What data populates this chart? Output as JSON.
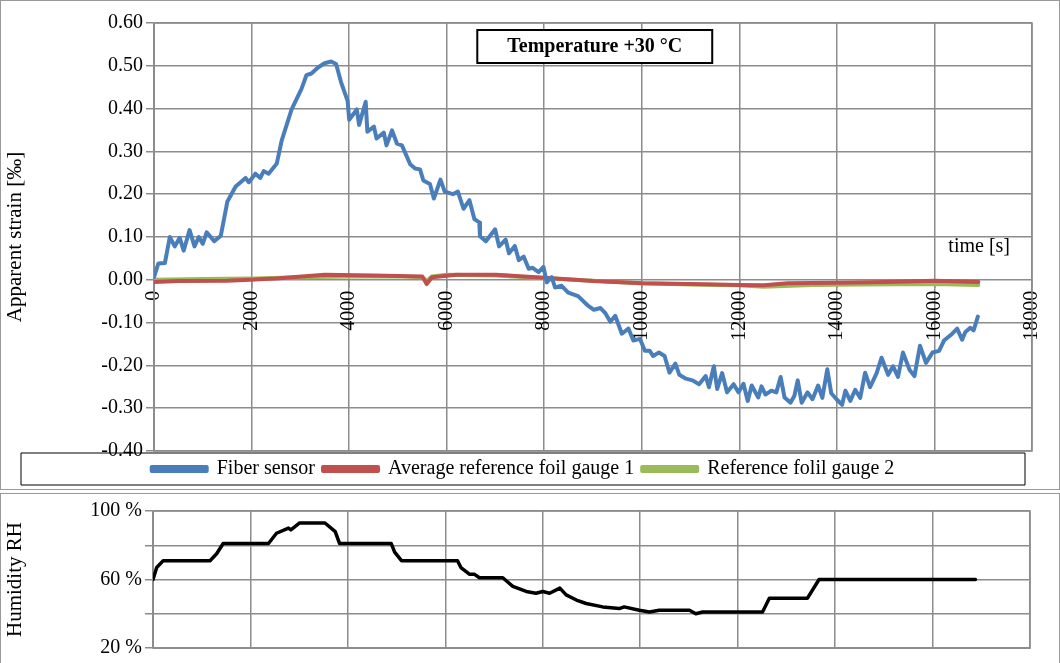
{
  "chart_data": [
    {
      "type": "line",
      "title": "Temperature +30 °C",
      "xlabel": "time [s]",
      "ylabel": "Apparent strain [‰]",
      "series": [
        {
          "name": "Fiber sensor",
          "color": "#4a7ebb",
          "x": [
            0,
            88,
            223,
            324,
            425,
            527,
            608,
            729,
            830,
            918,
            999,
            1080,
            1235,
            1370,
            1505,
            1674,
            1877,
            1944,
            2079,
            2180,
            2248,
            2349,
            2518,
            2619,
            2821,
            3024,
            3125,
            3227,
            3362,
            3497,
            3632,
            3733,
            3834,
            3969,
            4002,
            4158,
            4205,
            4340,
            4374,
            4509,
            4563,
            4711,
            4766,
            4880,
            4982,
            5083,
            5252,
            5353,
            5454,
            5522,
            5657,
            5738,
            5873,
            5960,
            6129,
            6230,
            6345,
            6467,
            6568,
            6669,
            6683,
            6804,
            6993,
            7074,
            7209,
            7277,
            7398,
            7479,
            7580,
            7682,
            7763,
            7884,
            7985,
            8053,
            8154,
            8222,
            8357,
            8492,
            8694,
            8883,
            9018,
            9153,
            9254,
            9355,
            9456,
            9591,
            9726,
            9827,
            9962,
            10063,
            10164,
            10231,
            10352,
            10467,
            10568,
            10689,
            10770,
            10905,
            11040,
            11175,
            11310,
            11377,
            11478,
            11546,
            11647,
            11748,
            11883,
            11984,
            12085,
            12172,
            12253,
            12388,
            12455,
            12536,
            12658,
            12759,
            12846,
            12927,
            13049,
            13129,
            13197,
            13278,
            13399,
            13500,
            13615,
            13702,
            13803,
            13884,
            13992,
            14107,
            14174,
            14275,
            14376,
            14478,
            14579,
            14680,
            14815,
            14916,
            15050,
            15151,
            15253,
            15354,
            15489,
            15590,
            15704,
            15826,
            15960,
            16095,
            16196,
            16365,
            16466,
            16567,
            16634,
            16735,
            16803,
            16890
          ],
          "values": [
            0.006,
            0.038,
            0.039,
            0.1,
            0.078,
            0.098,
            0.068,
            0.116,
            0.078,
            0.1,
            0.084,
            0.111,
            0.09,
            0.103,
            0.183,
            0.218,
            0.238,
            0.228,
            0.248,
            0.238,
            0.254,
            0.248,
            0.272,
            0.326,
            0.398,
            0.446,
            0.478,
            0.482,
            0.496,
            0.506,
            0.51,
            0.504,
            0.462,
            0.418,
            0.374,
            0.398,
            0.362,
            0.416,
            0.346,
            0.358,
            0.33,
            0.344,
            0.314,
            0.349,
            0.318,
            0.314,
            0.27,
            0.26,
            0.258,
            0.232,
            0.224,
            0.19,
            0.234,
            0.206,
            0.2,
            0.206,
            0.166,
            0.186,
            0.142,
            0.134,
            0.102,
            0.09,
            0.118,
            0.078,
            0.094,
            0.062,
            0.079,
            0.046,
            0.054,
            0.026,
            0.028,
            0.018,
            0.03,
            -0.006,
            0.006,
            -0.018,
            -0.014,
            -0.03,
            -0.038,
            -0.059,
            -0.07,
            -0.066,
            -0.078,
            -0.098,
            -0.084,
            -0.126,
            -0.114,
            -0.142,
            -0.138,
            -0.166,
            -0.166,
            -0.178,
            -0.17,
            -0.178,
            -0.217,
            -0.196,
            -0.222,
            -0.231,
            -0.235,
            -0.244,
            -0.225,
            -0.251,
            -0.202,
            -0.255,
            -0.218,
            -0.263,
            -0.244,
            -0.263,
            -0.243,
            -0.283,
            -0.247,
            -0.275,
            -0.249,
            -0.268,
            -0.259,
            -0.263,
            -0.227,
            -0.275,
            -0.287,
            -0.271,
            -0.235,
            -0.287,
            -0.263,
            -0.279,
            -0.247,
            -0.276,
            -0.209,
            -0.265,
            -0.279,
            -0.292,
            -0.259,
            -0.283,
            -0.257,
            -0.276,
            -0.217,
            -0.251,
            -0.218,
            -0.182,
            -0.222,
            -0.202,
            -0.227,
            -0.17,
            -0.21,
            -0.225,
            -0.154,
            -0.194,
            -0.17,
            -0.166,
            -0.142,
            -0.126,
            -0.114,
            -0.14,
            -0.122,
            -0.112,
            -0.118,
            -0.086
          ]
        },
        {
          "name": "Average reference foil gauge 1",
          "color": "#c0504d",
          "x": [
            0,
            500,
            1500,
            2500,
            3500,
            4500,
            5500,
            5590,
            5700,
            6200,
            7000,
            8000,
            9000,
            10000,
            11000,
            12000,
            12500,
            13000,
            14000,
            15000,
            16000,
            16900
          ],
          "values": [
            -0.005,
            -0.003,
            -0.002,
            0.003,
            0.012,
            0.01,
            0.008,
            -0.01,
            0.006,
            0.012,
            0.012,
            0.005,
            -0.003,
            -0.008,
            -0.01,
            -0.012,
            -0.013,
            -0.008,
            -0.007,
            -0.005,
            -0.002,
            -0.005
          ]
        },
        {
          "name": "Reference folil gauge 2",
          "color": "#9bbb59",
          "x": [
            0,
            1000,
            2000,
            3000,
            4000,
            5000,
            5500,
            5590,
            5700,
            6000,
            7000,
            8000,
            9000,
            10000,
            11000,
            12000,
            12500,
            13500,
            14500,
            16000,
            16900
          ],
          "values": [
            0,
            0.002,
            0.003,
            0.006,
            0.008,
            0.008,
            0.006,
            -0.003,
            0.008,
            0.012,
            0.01,
            0.004,
            -0.002,
            -0.008,
            -0.011,
            -0.013,
            -0.016,
            -0.012,
            -0.011,
            -0.01,
            -0.012
          ]
        }
      ],
      "xlim": [
        0,
        18000
      ],
      "xticks": [
        0,
        2000,
        4000,
        6000,
        8000,
        10000,
        12000,
        14000,
        16000,
        18000
      ],
      "ylim": [
        -0.4,
        0.6
      ],
      "yticks": [
        {
          "value": -0.4,
          "label": "-0.40"
        },
        {
          "value": -0.3,
          "label": "-0.30"
        },
        {
          "value": -0.2,
          "label": "-0.20"
        },
        {
          "value": -0.1,
          "label": "-0.10"
        },
        {
          "value": 0,
          "label": "0.00"
        },
        {
          "value": 0.1,
          "label": "0.10"
        },
        {
          "value": 0.2,
          "label": "0.20"
        },
        {
          "value": 0.3,
          "label": "0.30"
        },
        {
          "value": 0.4,
          "label": "0.40"
        },
        {
          "value": 0.5,
          "label": "0.50"
        },
        {
          "value": 0.6,
          "label": "0.60"
        }
      ],
      "grid": true,
      "legend": "bottom",
      "marker": "none",
      "line_style": "solid"
    },
    {
      "type": "line",
      "ylabel": "Humidity RH",
      "series": [
        {
          "color": "#000000",
          "x": [
            0,
            76,
            210,
            1170,
            1306,
            1440,
            2370,
            2535,
            2780,
            2830,
            3010,
            3530,
            3740,
            3830,
            4890,
            4960,
            5100,
            6250,
            6320,
            6500,
            6600,
            6700,
            7180,
            7385,
            7660,
            7860,
            8000,
            8140,
            8350,
            8480,
            8690,
            8890,
            9230,
            9570,
            9670,
            9980,
            10190,
            10390,
            11010,
            11140,
            11280,
            12510,
            12650,
            13430,
            13670,
            16880
          ],
          "values": [
            60,
            67,
            71,
            71,
            75,
            81,
            81,
            87,
            90,
            89,
            93,
            93,
            88,
            81,
            81,
            76,
            71,
            71,
            67,
            63,
            63,
            61,
            61,
            56,
            53,
            52,
            53,
            52,
            55,
            51,
            48,
            46,
            44,
            43,
            44,
            42,
            41,
            42,
            42,
            40,
            41,
            41,
            49,
            49,
            60,
            60
          ]
        }
      ],
      "xlim": [
        0,
        18000
      ],
      "xticks": [
        0,
        2000,
        4000,
        6000,
        8000,
        10000,
        12000,
        14000,
        16000,
        18000
      ],
      "ylim": [
        20,
        100
      ],
      "yticks": [
        {
          "value": 20,
          "label": "20 %"
        },
        {
          "value": 40,
          "label": null
        },
        {
          "value": 60,
          "label": "60 %"
        },
        {
          "value": 80,
          "label": null
        },
        {
          "value": 100,
          "label": "100 %"
        }
      ],
      "tick_labels": "y",
      "grid": true,
      "legend": false,
      "marker": "none",
      "line_style": "solid"
    }
  ]
}
